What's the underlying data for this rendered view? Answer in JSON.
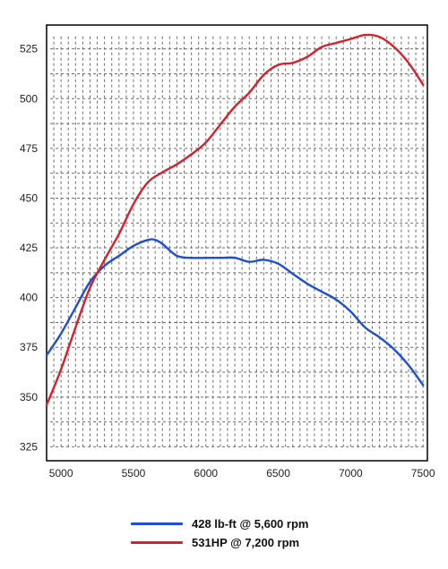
{
  "chart_data": {
    "type": "line",
    "title": "",
    "xlabel": "",
    "ylabel": "",
    "xlim": [
      4900,
      7530
    ],
    "ylim": [
      318,
      537
    ],
    "x_ticks": [
      5000,
      5500,
      6000,
      6500,
      7000,
      7500
    ],
    "y_ticks": [
      325,
      350,
      375,
      400,
      425,
      450,
      475,
      500,
      525
    ],
    "grid": true,
    "legend_position": "bottom",
    "series": [
      {
        "name": "428 lb-ft @ 5,600 rpm",
        "color": "#1f4fd1",
        "x": [
          4900,
          5000,
          5100,
          5200,
          5300,
          5400,
          5500,
          5600,
          5650,
          5700,
          5800,
          5900,
          6000,
          6100,
          6200,
          6300,
          6400,
          6500,
          6600,
          6700,
          6800,
          6900,
          7000,
          7100,
          7200,
          7300,
          7400,
          7500
        ],
        "y": [
          371,
          382,
          395,
          408,
          416,
          421,
          426,
          429,
          429,
          427,
          421,
          420,
          420,
          420,
          420,
          418,
          419,
          417,
          412,
          407,
          403,
          399,
          393,
          385,
          380,
          374,
          366,
          356
        ]
      },
      {
        "name": "531HP @ 7,200 rpm",
        "color": "#d7202a",
        "x": [
          4900,
          5000,
          5100,
          5200,
          5300,
          5400,
          5500,
          5600,
          5700,
          5800,
          5900,
          6000,
          6100,
          6200,
          6300,
          6400,
          6500,
          6600,
          6700,
          6800,
          6900,
          7000,
          7100,
          7200,
          7300,
          7400,
          7500
        ],
        "y": [
          346,
          364,
          385,
          405,
          419,
          432,
          447,
          458,
          463,
          467,
          472,
          478,
          487,
          496,
          503,
          512,
          517,
          518,
          521,
          526,
          528,
          530,
          532,
          531,
          526,
          518,
          507
        ]
      }
    ]
  }
}
